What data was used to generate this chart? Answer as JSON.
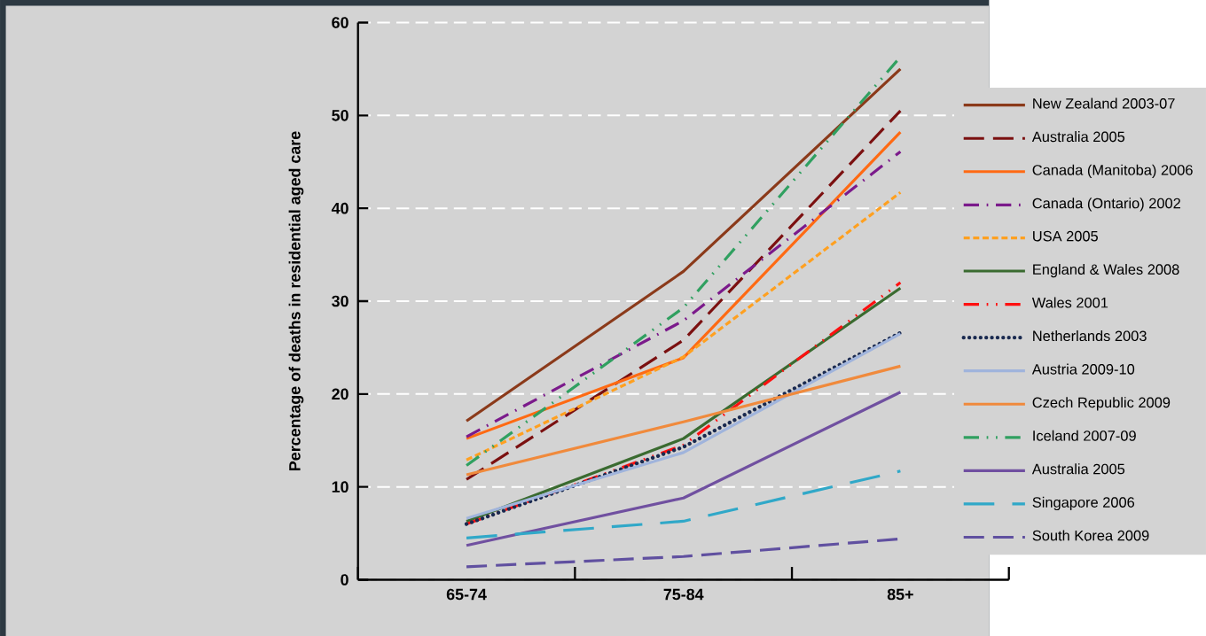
{
  "chart_data": {
    "type": "line",
    "ylabel": "Percentage of deaths in residential aged care",
    "categories": [
      "65-74",
      "75-84",
      "85+"
    ],
    "ylim": [
      0,
      60
    ],
    "yticks": [
      0,
      10,
      20,
      30,
      40,
      50,
      60
    ],
    "grid": "y",
    "legend": "right",
    "series": [
      {
        "name": "New Zealand 2003-07",
        "color": "#8b3a1a",
        "line_style": "solid",
        "values": [
          17.1,
          33.2,
          55.0
        ]
      },
      {
        "name": "Australia 2005",
        "color": "#7b1010",
        "line_style": "dashed",
        "values": [
          10.8,
          25.8,
          50.5
        ]
      },
      {
        "name": "Canada (Manitoba) 2006",
        "color": "#ff6a13",
        "line_style": "solid",
        "values": [
          15.2,
          23.9,
          48.2
        ]
      },
      {
        "name": "Canada (Ontario) 2002",
        "color": "#7b1a8b",
        "line_style": "dashdot",
        "values": [
          15.4,
          27.9,
          46.1
        ]
      },
      {
        "name": "USA 2005",
        "color": "#ffa020",
        "line_style": "shortdash",
        "values": [
          12.9,
          24.0,
          41.7
        ]
      },
      {
        "name": "England & Wales 2008",
        "color": "#3a6b30",
        "line_style": "solid",
        "values": [
          6.3,
          15.2,
          31.4
        ]
      },
      {
        "name": "Wales 2001",
        "color": "#ff1010",
        "line_style": "dashdotdot",
        "values": [
          6.0,
          14.5,
          32.0
        ]
      },
      {
        "name": "Netherlands 2003",
        "color": "#1a2a50",
        "line_style": "dotted",
        "values": [
          6.0,
          14.3,
          26.6
        ]
      },
      {
        "name": "Austria 2009-10",
        "color": "#a0b4dc",
        "line_style": "solid",
        "values": [
          6.6,
          13.7,
          26.5
        ]
      },
      {
        "name": "Czech Republic 2009",
        "color": "#f08a3c",
        "line_style": "solid",
        "values": [
          11.3,
          17.0,
          23.0
        ]
      },
      {
        "name": "Iceland 2007-09",
        "color": "#30a060",
        "line_style": "dashdotdot",
        "values": [
          12.3,
          29.3,
          56.3
        ]
      },
      {
        "name": "Australia 2005",
        "color": "#7050a0",
        "line_style": "solid",
        "values": [
          3.7,
          8.8,
          20.2
        ]
      },
      {
        "name": "Singapore 2006",
        "color": "#30a8c8",
        "line_style": "longdash",
        "values": [
          4.5,
          6.3,
          11.7
        ]
      },
      {
        "name": "South Korea 2009",
        "color": "#6050a0",
        "line_style": "dashed",
        "values": [
          1.4,
          2.5,
          4.4
        ]
      }
    ]
  }
}
